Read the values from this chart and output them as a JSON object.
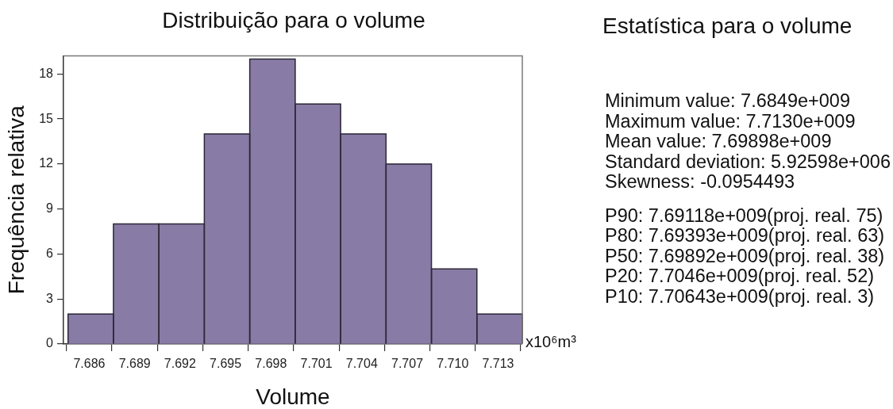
{
  "chart_data": [
    {
      "type": "histogram",
      "title": "Distribuição para o volume",
      "xlabel": "Volume",
      "ylabel": "Frequência relativa",
      "bins": [
        7.6846,
        7.6876,
        7.6906,
        7.6936,
        7.6966,
        7.6996,
        7.7026,
        7.7056,
        7.7086,
        7.7116,
        7.7146
      ],
      "values": [
        2,
        8,
        8,
        14,
        19,
        16,
        14,
        12,
        5,
        2
      ],
      "color": "#887ca6",
      "xlim": [
        7.6843,
        7.7146
      ],
      "ylim": [
        0,
        19.2
      ],
      "xticks": [
        7.686,
        7.689,
        7.692,
        7.695,
        7.698,
        7.701,
        7.704,
        7.707,
        {
          "value": 7.71,
          "label": "7.710"
        },
        7.713
      ],
      "yticks": [
        0,
        3,
        6,
        9,
        12,
        15,
        18
      ],
      "annotations": [
        "x10⁶m³"
      ]
    },
    {
      "type": "other",
      "title": "Estatística para o volume",
      "annotations": [
        "Minimum value: 7.6849e+009",
        "Maximum value: 7.7130e+009",
        "Mean value: 7.69898e+009",
        "Standard deviation: 5.92598e+006",
        "Skewness: -0.0954493",
        "P90: 7.69118e+009(proj. real. 75)",
        "P80: 7.69393e+009(proj. real. 63)",
        "P50: 7.69892e+009(proj. real. 38)",
        "P20: 7.7046e+009(proj. real. 52)",
        "P10: 7.70643e+009(proj. real. 3)"
      ]
    }
  ]
}
